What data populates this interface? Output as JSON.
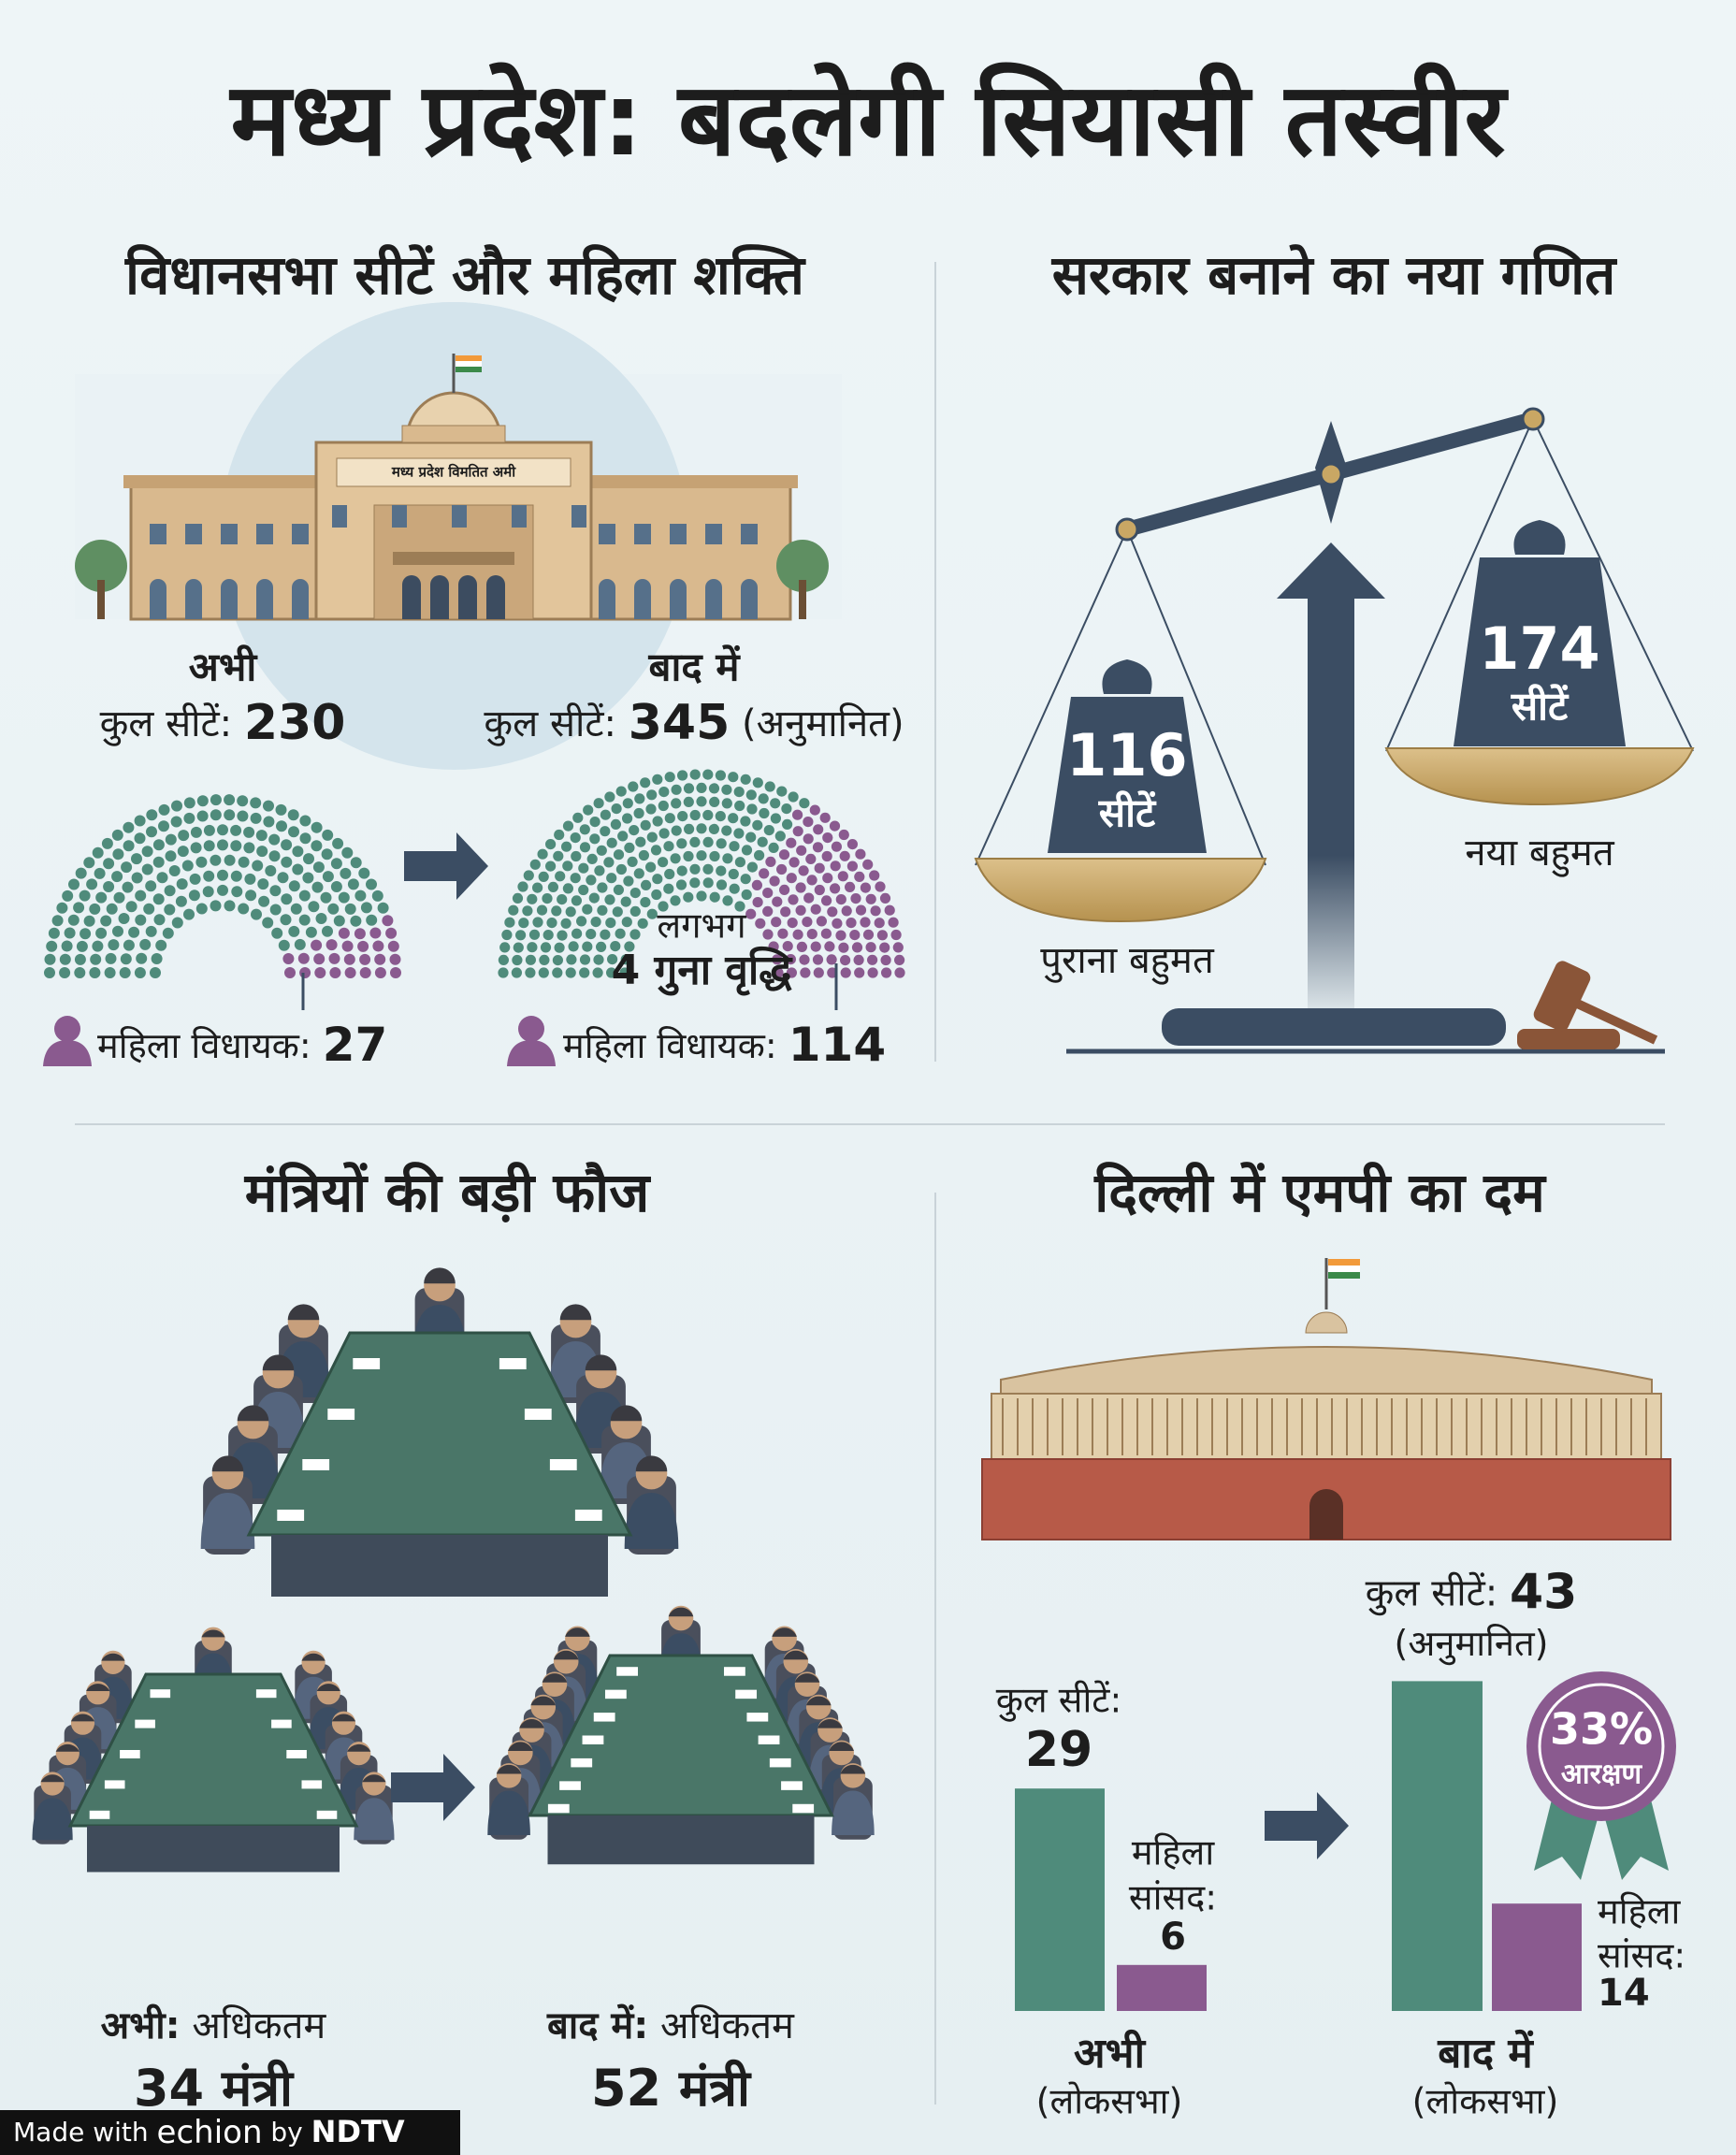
{
  "title": "मध्य प्रदेश: बदलेगी सियासी तस्वीर",
  "assembly": {
    "heading": "विधानसभा सीटें और महिला शक्ति",
    "building_sign": "मध्य प्रदेश विमतित अमी",
    "now": {
      "label": "अभी",
      "seats_label": "कुल सीटें:",
      "seats": 230,
      "women_label": "महिला विधायक:",
      "women": 27
    },
    "later": {
      "label": "बाद में",
      "seats_label": "कुल सीटें:",
      "seats": 345,
      "note": "(अनुमानित)",
      "women_label": "महिला विधायक:",
      "women": 114
    },
    "growth": {
      "line1": "लगभग",
      "line2": "4 गुना वृद्धि"
    }
  },
  "majority": {
    "heading": "सरकार बनाने का नया गणित",
    "old": {
      "seats": 116,
      "unit": "सीटें",
      "label": "पुराना बहुमत"
    },
    "new": {
      "seats": 174,
      "unit": "सीटें",
      "label": "नया बहुमत"
    }
  },
  "ministers": {
    "heading": "मंत्रियों की बड़ी फौज",
    "now": {
      "label": "अभी:",
      "text": "अधिकतम",
      "count": 34,
      "unit": "मंत्री"
    },
    "later": {
      "label": "बाद में:",
      "text": "अधिकतम",
      "count": 52,
      "unit": "मंत्री"
    }
  },
  "delhi": {
    "heading": "दिल्ली में एमपी का दम",
    "now": {
      "total_label": "कुल सीटें:",
      "total": 29,
      "women_label": [
        "महिला",
        "सांसद:"
      ],
      "women": 6,
      "caption": "अभी",
      "house": "(लोकसभा)"
    },
    "later": {
      "total_label": "कुल सीटें:",
      "total": 43,
      "note": "(अनुमानित)",
      "women_label": [
        "महिला",
        "सांसद:"
      ],
      "women": 14,
      "caption": "बाद में",
      "house": "(लोकसभा)"
    },
    "badge": {
      "percent": "33%",
      "label": "आरक्षण"
    }
  },
  "footer": {
    "made_with": "Made with",
    "brand": "echion",
    "by": "by",
    "org": "NDTV"
  }
}
